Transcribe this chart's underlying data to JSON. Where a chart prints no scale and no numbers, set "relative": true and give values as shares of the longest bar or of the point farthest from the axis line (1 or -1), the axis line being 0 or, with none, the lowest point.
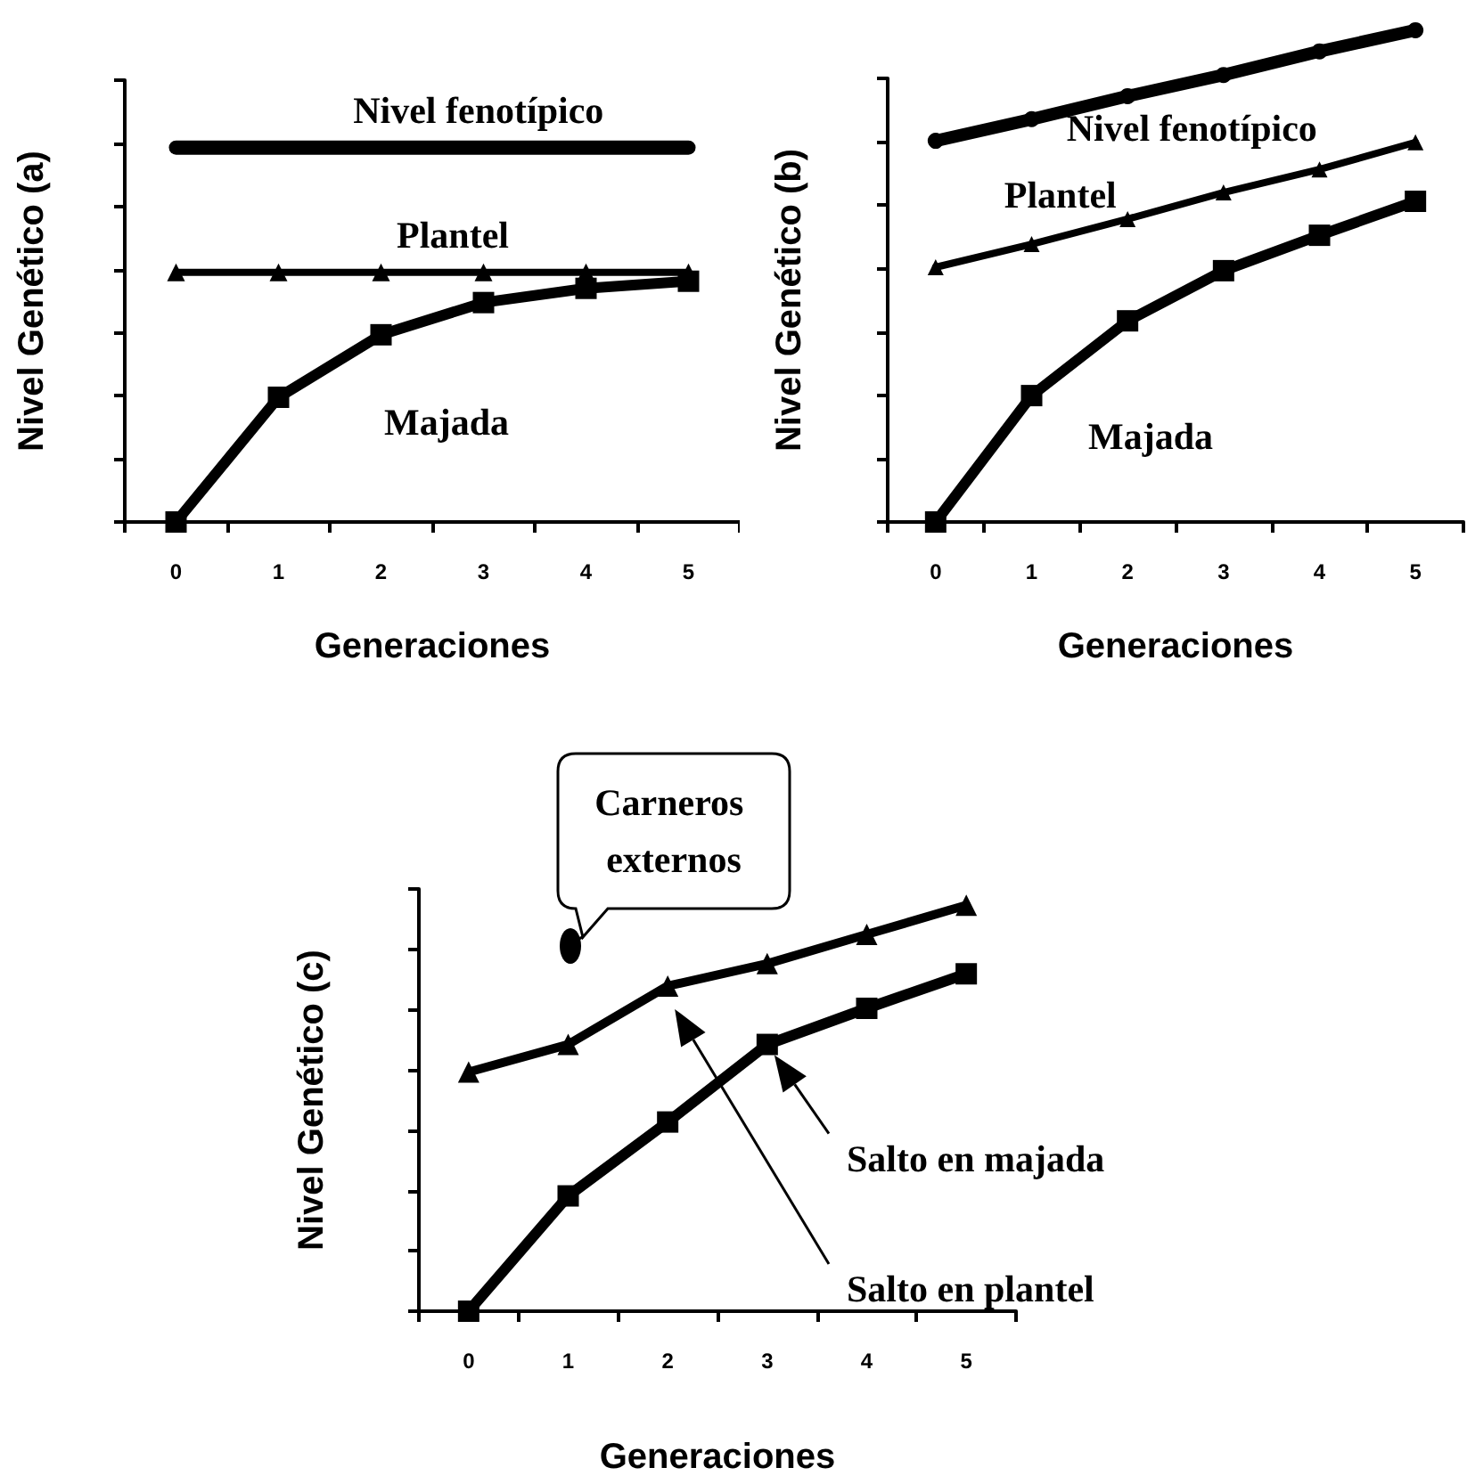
{
  "chart_data": [
    {
      "type": "line",
      "ylabel": "Nivel Genético (a)",
      "xlabel": "Generaciones",
      "categories": [
        "0",
        "1",
        "2",
        "3",
        "4",
        "5"
      ],
      "relative": true,
      "legend": false,
      "series": [
        {
          "name": "Nivel fenotípico",
          "color": "#000000",
          "marker": "none",
          "values": [
            1,
            1,
            1,
            1,
            1,
            1
          ]
        },
        {
          "name": "Plantel",
          "color": "#000000",
          "marker": "triangle",
          "values": [
            0.667,
            0.667,
            0.667,
            0.667,
            0.667,
            0.667
          ]
        },
        {
          "name": "Majada",
          "color": "#000000",
          "marker": "square",
          "values": [
            0,
            0.333,
            0.5,
            0.586,
            0.624,
            0.643
          ]
        }
      ]
    },
    {
      "type": "line",
      "ylabel": "Nivel Genético (b)",
      "xlabel": "Generaciones",
      "categories": [
        "0",
        "1",
        "2",
        "3",
        "4",
        "5"
      ],
      "relative": true,
      "legend": false,
      "series": [
        {
          "name": "Nivel fenotípico",
          "color": "#000000",
          "marker": "circle",
          "values": [
            0.775,
            0.819,
            0.866,
            0.909,
            0.957,
            1
          ]
        },
        {
          "name": "Plantel",
          "color": "#000000",
          "marker": "triangle",
          "values": [
            0.518,
            0.565,
            0.616,
            0.67,
            0.717,
            0.772
          ]
        },
        {
          "name": "Majada",
          "color": "#000000",
          "marker": "square",
          "values": [
            0,
            0.257,
            0.409,
            0.511,
            0.583,
            0.652
          ]
        }
      ]
    },
    {
      "type": "line",
      "ylabel": "Nivel Genético (c)",
      "xlabel": "Generaciones",
      "categories": [
        "0",
        "1",
        "2",
        "3",
        "4",
        "5"
      ],
      "relative": true,
      "legend": false,
      "annotations": [
        "Carneros externos",
        "Salto en majada",
        "Salto en plantel"
      ],
      "series": [
        {
          "color": "#000000",
          "marker": "triangle",
          "values": [
            0.589,
            0.657,
            0.801,
            0.856,
            0.928,
            1
          ]
        },
        {
          "color": "#000000",
          "marker": "square",
          "values": [
            0,
            0.284,
            0.466,
            0.657,
            0.746,
            0.831
          ]
        }
      ]
    }
  ]
}
